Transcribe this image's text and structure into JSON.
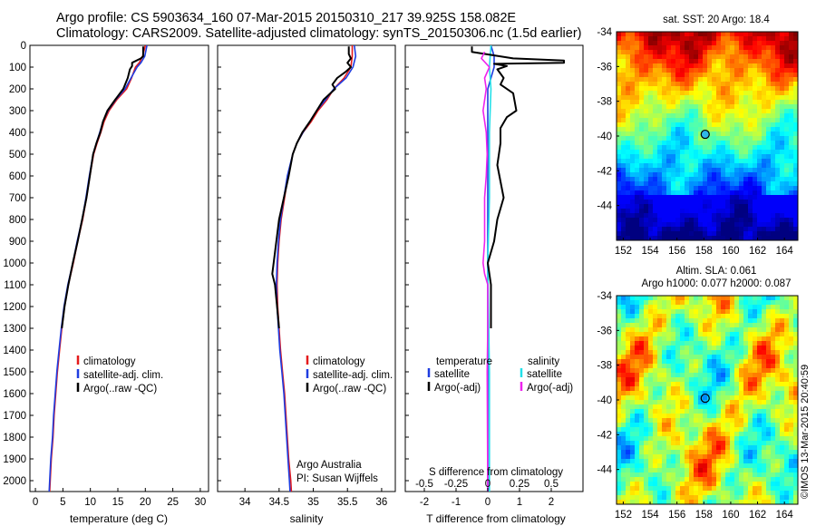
{
  "header": {
    "line1": "Argo profile: CS 5903634_160 07-Mar-2015 20150310_217 39.925S 158.082E",
    "line2": "Climatology: CARS2009. Satellite-adjusted climatology: synTS_20150306.nc (1.5d earlier)"
  },
  "credit": "©IMOS 13-Mar-2015 20:40:59",
  "chart_data": [
    {
      "type": "line",
      "id": "temperature",
      "xlabel": "temperature (deg C)",
      "ylabel": "",
      "xlim": [
        -1,
        31.5
      ],
      "ylim": [
        2050,
        0
      ],
      "xticks": [
        0,
        5,
        10,
        15,
        20,
        25,
        30
      ],
      "yticks": [
        0,
        100,
        200,
        300,
        400,
        500,
        600,
        700,
        800,
        900,
        1000,
        1100,
        1200,
        1300,
        1400,
        1500,
        1600,
        1700,
        1800,
        1900,
        2000
      ],
      "legend": [
        "climatology",
        "satellite-adj. clim.",
        "Argo(..raw -QC)"
      ],
      "series": [
        {
          "name": "climatology",
          "color": "#e41a1c",
          "points": [
            [
              20.0,
              0
            ],
            [
              19.5,
              50
            ],
            [
              18.9,
              80
            ],
            [
              18.2,
              100
            ],
            [
              17.5,
              150
            ],
            [
              16.6,
              200
            ],
            [
              14.8,
              250
            ],
            [
              13.4,
              300
            ],
            [
              12.5,
              350
            ],
            [
              11.9,
              400
            ],
            [
              11.2,
              450
            ],
            [
              10.6,
              500
            ],
            [
              9.9,
              600
            ],
            [
              9.3,
              700
            ],
            [
              8.6,
              800
            ],
            [
              7.7,
              900
            ],
            [
              6.9,
              1000
            ],
            [
              6.0,
              1100
            ],
            [
              5.3,
              1200
            ],
            [
              4.8,
              1300
            ],
            [
              4.4,
              1400
            ],
            [
              4.0,
              1500
            ],
            [
              3.7,
              1600
            ],
            [
              3.4,
              1700
            ],
            [
              3.2,
              1800
            ],
            [
              2.9,
              1900
            ],
            [
              2.7,
              2000
            ],
            [
              2.6,
              2050
            ]
          ]
        },
        {
          "name": "satellite-adj. clim.",
          "color": "#1f3de0",
          "points": [
            [
              20.3,
              0
            ],
            [
              19.9,
              50
            ],
            [
              19.2,
              80
            ],
            [
              18.5,
              100
            ],
            [
              17.4,
              150
            ],
            [
              16.3,
              200
            ],
            [
              14.6,
              250
            ],
            [
              13.2,
              300
            ],
            [
              12.3,
              350
            ],
            [
              11.7,
              400
            ],
            [
              11.1,
              450
            ],
            [
              10.5,
              500
            ],
            [
              9.8,
              600
            ],
            [
              9.2,
              700
            ],
            [
              8.5,
              800
            ],
            [
              7.6,
              900
            ],
            [
              6.8,
              1000
            ],
            [
              5.9,
              1100
            ],
            [
              5.2,
              1200
            ],
            [
              4.7,
              1300
            ],
            [
              4.3,
              1400
            ],
            [
              3.9,
              1500
            ],
            [
              3.6,
              1600
            ],
            [
              3.3,
              1700
            ],
            [
              3.1,
              1800
            ],
            [
              2.8,
              1900
            ],
            [
              2.6,
              2000
            ],
            [
              2.5,
              2050
            ]
          ]
        },
        {
          "name": "Argo(..raw -QC)",
          "color": "#000000",
          "points": [
            [
              19.6,
              5
            ],
            [
              19.6,
              50
            ],
            [
              19.2,
              60
            ],
            [
              17.6,
              80
            ],
            [
              17.6,
              95
            ],
            [
              17.2,
              110
            ],
            [
              16.8,
              150
            ],
            [
              16.0,
              200
            ],
            [
              14.5,
              250
            ],
            [
              13.1,
              300
            ],
            [
              12.3,
              350
            ],
            [
              11.8,
              400
            ],
            [
              11.1,
              450
            ],
            [
              10.5,
              500
            ],
            [
              9.9,
              600
            ],
            [
              9.3,
              700
            ],
            [
              8.5,
              800
            ],
            [
              7.7,
              900
            ],
            [
              6.8,
              1000
            ],
            [
              6.0,
              1100
            ],
            [
              5.3,
              1200
            ],
            [
              4.8,
              1300
            ]
          ]
        }
      ]
    },
    {
      "type": "line",
      "id": "salinity",
      "xlabel": "salinity",
      "xlim": [
        33.6,
        36.2
      ],
      "ylim": [
        2050,
        0
      ],
      "xticks": [
        34,
        34.5,
        35,
        35.5,
        36
      ],
      "legend": [
        "climatology",
        "satellite-adj. clim.",
        "Argo(..raw -QC)"
      ],
      "annotation": [
        "Argo Australia",
        "PI: Susan Wijffels"
      ],
      "series": [
        {
          "name": "climatology",
          "color": "#e41a1c",
          "points": [
            [
              35.57,
              0
            ],
            [
              35.57,
              50
            ],
            [
              35.55,
              100
            ],
            [
              35.45,
              150
            ],
            [
              35.3,
              200
            ],
            [
              35.2,
              250
            ],
            [
              35.07,
              300
            ],
            [
              34.97,
              350
            ],
            [
              34.85,
              400
            ],
            [
              34.76,
              450
            ],
            [
              34.7,
              500
            ],
            [
              34.63,
              600
            ],
            [
              34.58,
              700
            ],
            [
              34.53,
              800
            ],
            [
              34.5,
              900
            ],
            [
              34.48,
              1000
            ],
            [
              34.47,
              1100
            ],
            [
              34.48,
              1200
            ],
            [
              34.5,
              1300
            ],
            [
              34.52,
              1400
            ],
            [
              34.55,
              1500
            ],
            [
              34.58,
              1600
            ],
            [
              34.6,
              1700
            ],
            [
              34.62,
              1800
            ],
            [
              34.64,
              1900
            ],
            [
              34.67,
              2000
            ],
            [
              34.68,
              2050
            ]
          ]
        },
        {
          "name": "satellite-adj. clim.",
          "color": "#1f3de0",
          "points": [
            [
              35.6,
              0
            ],
            [
              35.62,
              50
            ],
            [
              35.58,
              100
            ],
            [
              35.48,
              150
            ],
            [
              35.3,
              200
            ],
            [
              35.18,
              250
            ],
            [
              35.05,
              300
            ],
            [
              34.95,
              350
            ],
            [
              34.85,
              400
            ],
            [
              34.76,
              450
            ],
            [
              34.7,
              500
            ],
            [
              34.62,
              600
            ],
            [
              34.57,
              700
            ],
            [
              34.52,
              800
            ],
            [
              34.49,
              900
            ],
            [
              34.47,
              1000
            ],
            [
              34.46,
              1100
            ],
            [
              34.47,
              1200
            ],
            [
              34.49,
              1300
            ],
            [
              34.51,
              1400
            ],
            [
              34.54,
              1500
            ],
            [
              34.57,
              1600
            ],
            [
              34.59,
              1700
            ],
            [
              34.61,
              1800
            ],
            [
              34.63,
              1900
            ],
            [
              34.65,
              2000
            ],
            [
              34.66,
              2050
            ]
          ]
        },
        {
          "name": "Argo(..raw -QC)",
          "color": "#000000",
          "points": [
            [
              35.52,
              5
            ],
            [
              35.52,
              40
            ],
            [
              35.55,
              60
            ],
            [
              35.5,
              80
            ],
            [
              35.55,
              100
            ],
            [
              35.48,
              120
            ],
            [
              35.35,
              150
            ],
            [
              35.28,
              180
            ],
            [
              35.32,
              200
            ],
            [
              35.15,
              250
            ],
            [
              35.05,
              300
            ],
            [
              34.95,
              350
            ],
            [
              34.84,
              400
            ],
            [
              34.76,
              450
            ],
            [
              34.7,
              500
            ],
            [
              34.64,
              600
            ],
            [
              34.57,
              700
            ],
            [
              34.5,
              800
            ],
            [
              34.46,
              900
            ],
            [
              34.42,
              1000
            ],
            [
              34.4,
              1050
            ],
            [
              34.44,
              1100
            ],
            [
              34.47,
              1200
            ],
            [
              34.5,
              1300
            ]
          ]
        }
      ]
    },
    {
      "type": "line",
      "id": "difference",
      "xlabel": "T difference from climatology",
      "xlabel_top": "S difference from climatology",
      "xlim": [
        -2.6,
        3.0
      ],
      "ylim": [
        2050,
        0
      ],
      "xticks_T": [
        "-2",
        "-1",
        "0",
        "1",
        "2"
      ],
      "xticks_S": [
        "-0.5",
        "-0.25",
        "0",
        "0.25",
        "0.5"
      ],
      "legend_temperature": {
        "heading": "temperature",
        "items": [
          "satellite",
          "Argo(-adj)"
        ]
      },
      "legend_salinity": {
        "heading": "salinity",
        "items": [
          "satellite",
          "Argo(-adj)"
        ]
      },
      "series": [
        {
          "name": "T satellite",
          "color": "#1f3de0",
          "points": [
            [
              0.1,
              0
            ],
            [
              0.2,
              50
            ],
            [
              0.2,
              100
            ],
            [
              0.0,
              200
            ],
            [
              0.0,
              400
            ],
            [
              0.0,
              700
            ],
            [
              0.0,
              1000
            ],
            [
              0.0,
              1500
            ],
            [
              0.0,
              2050
            ]
          ]
        },
        {
          "name": "S satellite",
          "color": "#22e0e8",
          "points": [
            [
              0.1,
              0
            ],
            [
              0.05,
              100
            ],
            [
              0.1,
              200
            ],
            [
              0.05,
              400
            ],
            [
              0.05,
              700
            ],
            [
              0.0,
              1000
            ],
            [
              0.05,
              1500
            ],
            [
              0.05,
              2050
            ]
          ]
        },
        {
          "name": "T Argo(-adj)",
          "color": "#000000",
          "points": [
            [
              -0.5,
              5
            ],
            [
              -0.5,
              30
            ],
            [
              0.8,
              60
            ],
            [
              2.4,
              70
            ],
            [
              2.4,
              80
            ],
            [
              0.2,
              85
            ],
            [
              0.6,
              95
            ],
            [
              0.3,
              110
            ],
            [
              0.5,
              150
            ],
            [
              0.4,
              180
            ],
            [
              0.8,
              220
            ],
            [
              0.9,
              300
            ],
            [
              0.6,
              330
            ],
            [
              0.4,
              380
            ],
            [
              0.4,
              450
            ],
            [
              0.3,
              550
            ],
            [
              0.5,
              700
            ],
            [
              0.3,
              800
            ],
            [
              0.2,
              900
            ],
            [
              0.0,
              1000
            ],
            [
              0.1,
              1100
            ],
            [
              0.1,
              1200
            ],
            [
              0.1,
              1300
            ]
          ]
        },
        {
          "name": "S Argo(-adj)",
          "color": "#ee22ee",
          "points": [
            [
              -0.1,
              30
            ],
            [
              -0.2,
              60
            ],
            [
              0.05,
              100
            ],
            [
              -0.1,
              150
            ],
            [
              -0.05,
              200
            ],
            [
              -0.15,
              300
            ],
            [
              -0.05,
              400
            ],
            [
              -0.02,
              500
            ],
            [
              -0.05,
              600
            ],
            [
              -0.1,
              700
            ],
            [
              -0.1,
              800
            ],
            [
              -0.1,
              900
            ],
            [
              -0.15,
              1000
            ],
            [
              -0.1,
              1050
            ],
            [
              0.0,
              1100
            ],
            [
              0.0,
              1300
            ],
            [
              -0.02,
              1500
            ],
            [
              0.0,
              2050
            ]
          ]
        }
      ]
    },
    {
      "type": "heatmap",
      "id": "sst-map",
      "title": "sat. SST: 20 Argo: 18.4",
      "xlim": [
        151.5,
        165
      ],
      "ylim": [
        -46,
        -34
      ],
      "xticks": [
        152,
        154,
        156,
        158,
        160,
        162,
        164
      ],
      "yticks": [
        -34,
        -36,
        -38,
        -40,
        -42,
        -44
      ],
      "argo_position": [
        158.1,
        -39.9
      ]
    },
    {
      "type": "heatmap",
      "id": "sla-map",
      "title_lines": [
        "Altim. SLA: 0.061",
        "Argo h1000: 0.077 h2000: 0.087"
      ],
      "xlim": [
        151.5,
        165
      ],
      "ylim": [
        -46,
        -34
      ],
      "xticks": [
        152,
        154,
        156,
        158,
        160,
        162,
        164
      ],
      "yticks": [
        -34,
        -36,
        -38,
        -40,
        -42,
        -44
      ],
      "argo_position": [
        158.1,
        -39.9
      ]
    }
  ]
}
